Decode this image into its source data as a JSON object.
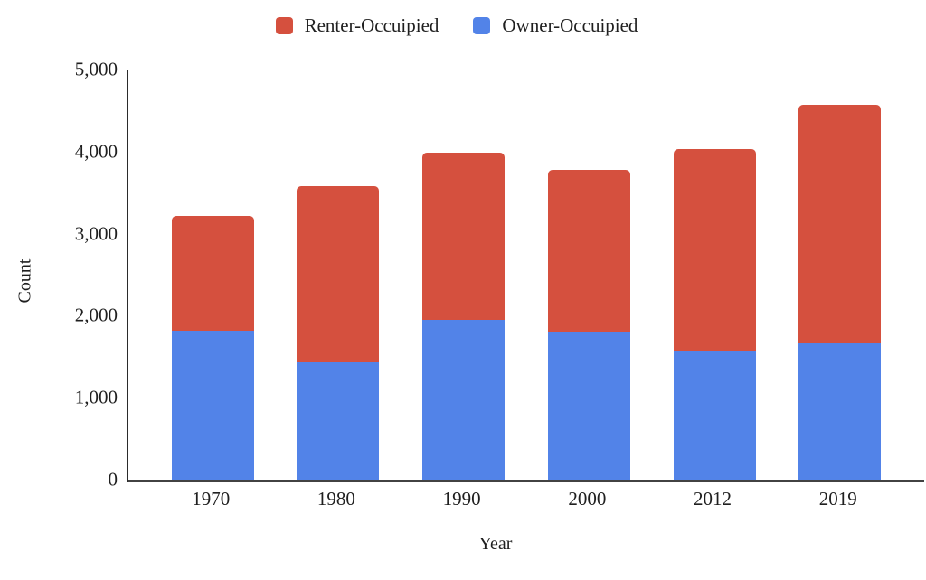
{
  "chart_data": {
    "type": "bar",
    "stacked": true,
    "title": "",
    "xlabel": "Year",
    "ylabel": "Count",
    "categories": [
      "1970",
      "1980",
      "1990",
      "2000",
      "2012",
      "2019"
    ],
    "series": [
      {
        "name": "Renter-Occuipied",
        "color": "#d5503e",
        "values": [
          1400,
          2150,
          2040,
          1975,
          2455,
          2905
        ]
      },
      {
        "name": "Owner-Occuipied",
        "color": "#5283e8",
        "values": [
          1820,
          1430,
          1950,
          1805,
          1575,
          1665
        ]
      }
    ],
    "stack_bottom_to_top": [
      "Owner-Occuipied",
      "Renter-Occuipied"
    ],
    "totals": [
      3220,
      3580,
      3990,
      3780,
      4030,
      4570
    ],
    "ylim": [
      0,
      5000
    ],
    "yticks": [
      {
        "value": 0,
        "label": "0"
      },
      {
        "value": 1000,
        "label": "1,000"
      },
      {
        "value": 2000,
        "label": "2,000"
      },
      {
        "value": 3000,
        "label": "3,000"
      },
      {
        "value": 4000,
        "label": "4,000"
      },
      {
        "value": 5000,
        "label": "5,000"
      }
    ],
    "grid": false,
    "legend_position": "top-center",
    "background": "#ffffff",
    "axis_color": "#2b2b2b",
    "text_color": "#1f1f1f"
  }
}
